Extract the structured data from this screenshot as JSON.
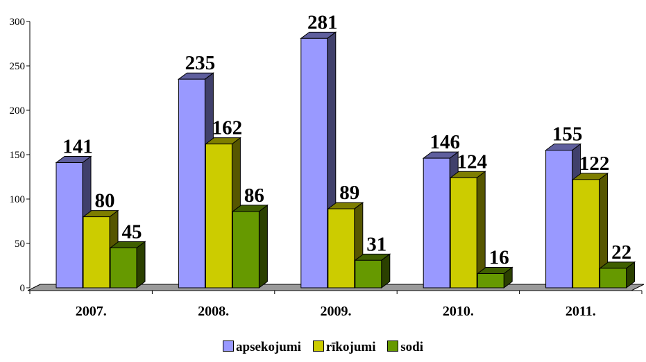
{
  "chart_data": {
    "type": "bar",
    "categories": [
      "2007.",
      "2008.",
      "2009.",
      "2010.",
      "2011."
    ],
    "series": [
      {
        "name": "apsekojumi",
        "values": [
          141,
          235,
          281,
          146,
          155
        ],
        "color": "#9999ff"
      },
      {
        "name": "rīkojumi",
        "values": [
          80,
          162,
          89,
          124,
          122
        ],
        "color": "#cccc00"
      },
      {
        "name": "sodi",
        "values": [
          45,
          86,
          31,
          16,
          22
        ],
        "color": "#669900"
      }
    ],
    "yticks": [
      "0",
      "50",
      "100",
      "150",
      "200",
      "250",
      "300"
    ],
    "ylim": [
      0,
      300
    ],
    "data_labels": true,
    "three_d": true,
    "legend_position": "bottom"
  }
}
